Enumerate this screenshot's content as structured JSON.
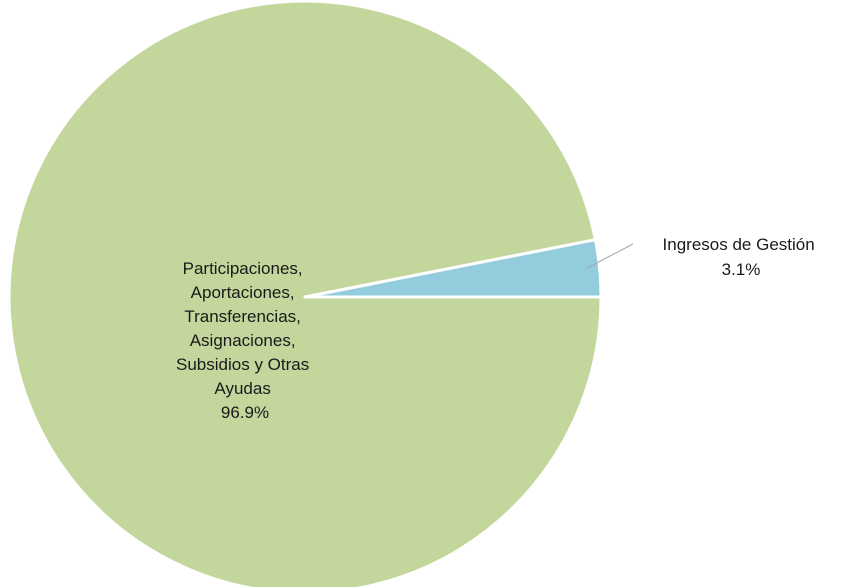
{
  "chart_data": {
    "type": "pie",
    "title": "",
    "slices": [
      {
        "label_lines": [
          "Participaciones,",
          "Aportaciones,",
          "Transferencias,",
          "Asignaciones,",
          "Subsidios y Otras",
          "Ayudas"
        ],
        "value": 96.9,
        "value_label": "96.9%",
        "color": "#c3d69b"
      },
      {
        "label_lines": [
          "Ingresos de Gestión"
        ],
        "value": 3.1,
        "value_label": "3.1%",
        "color": "#93cddd"
      }
    ],
    "slice_border_color": "#ffffff",
    "leader_line_color": "#a6a6a6"
  }
}
